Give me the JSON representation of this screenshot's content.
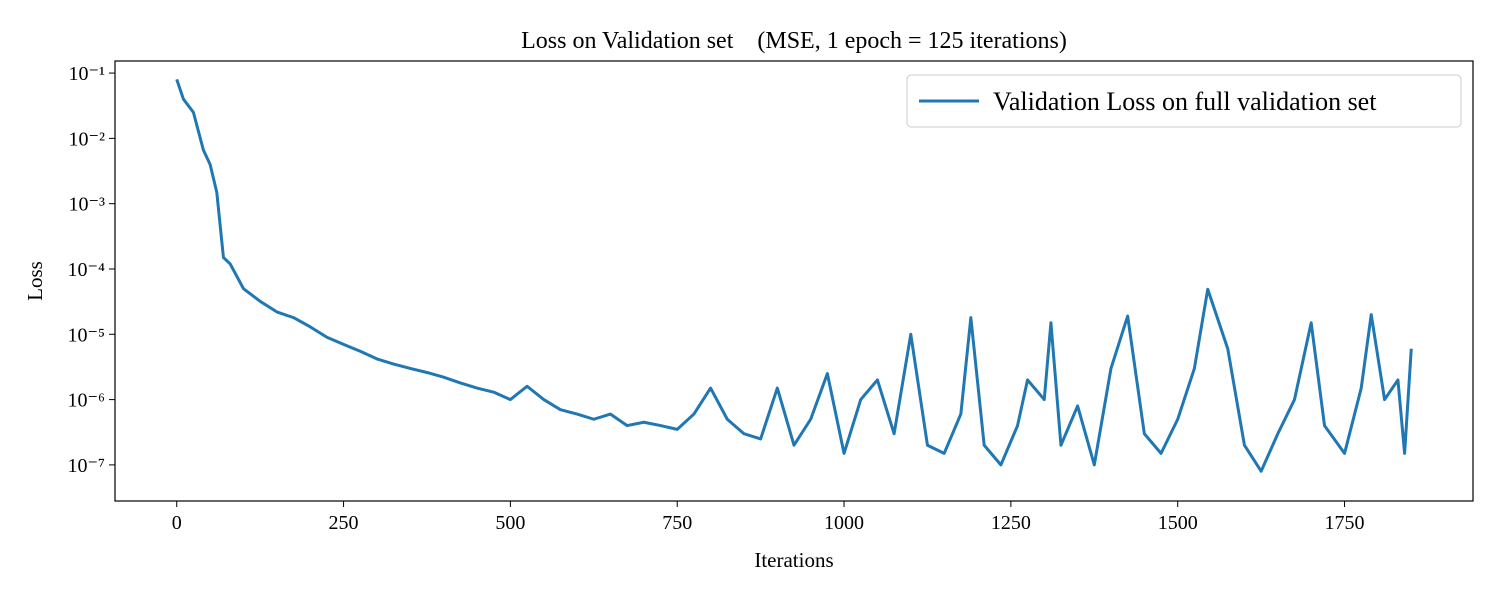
{
  "chart_data": {
    "type": "line",
    "title": "Loss on Validation set    (MSE, 1 epoch = 125 iterations)",
    "x_label": "Iterations",
    "y_label": "Loss",
    "y_scale": "log",
    "legend_position": "upper right",
    "xlim": [
      -92.5,
      1942.5
    ],
    "ylim": [
      2.8e-08,
      0.153
    ],
    "xticks": [
      0,
      250,
      500,
      750,
      1000,
      1250,
      1500,
      1750
    ],
    "yticks": [
      {
        "value": 1e-07,
        "label": "10⁻⁷"
      },
      {
        "value": 1e-06,
        "label": "10⁻⁶"
      },
      {
        "value": 1e-05,
        "label": "10⁻⁵"
      },
      {
        "value": 0.0001,
        "label": "10⁻⁴"
      },
      {
        "value": 0.001,
        "label": "10⁻³"
      },
      {
        "value": 0.01,
        "label": "10⁻²"
      },
      {
        "value": 0.1,
        "label": "10⁻¹"
      }
    ],
    "x": [
      0,
      10,
      25,
      40,
      50,
      60,
      70,
      80,
      100,
      125,
      150,
      175,
      200,
      225,
      250,
      275,
      300,
      325,
      350,
      375,
      400,
      425,
      450,
      475,
      500,
      525,
      550,
      575,
      600,
      625,
      650,
      675,
      700,
      725,
      750,
      775,
      800,
      825,
      850,
      875,
      900,
      925,
      950,
      975,
      1000,
      1025,
      1050,
      1075,
      1100,
      1125,
      1150,
      1175,
      1190,
      1210,
      1235,
      1260,
      1275,
      1300,
      1310,
      1325,
      1350,
      1375,
      1400,
      1425,
      1450,
      1475,
      1500,
      1525,
      1545,
      1575,
      1600,
      1625,
      1650,
      1675,
      1700,
      1720,
      1750,
      1775,
      1790,
      1810,
      1830,
      1840,
      1850
    ],
    "series": [
      {
        "name": "Validation Loss on full validation set",
        "color": "#1f77b4",
        "values": [
          0.08,
          0.04,
          0.025,
          0.0066,
          0.004,
          0.0015,
          0.00015,
          0.00012,
          5e-05,
          3.2e-05,
          2.2e-05,
          1.8e-05,
          1.3e-05,
          9e-06,
          7e-06,
          5.5e-06,
          4.2e-06,
          3.5e-06,
          3e-06,
          2.6e-06,
          2.2e-06,
          1.8e-06,
          1.5e-06,
          1.3e-06,
          1e-06,
          1.6e-06,
          1e-06,
          7e-07,
          6e-07,
          5e-07,
          6e-07,
          4e-07,
          4.5e-07,
          4e-07,
          3.5e-07,
          6e-07,
          1.5e-06,
          5e-07,
          3e-07,
          2.5e-07,
          1.5e-06,
          2e-07,
          5e-07,
          2.5e-06,
          1.5e-07,
          1e-06,
          2e-06,
          3e-07,
          1e-05,
          2e-07,
          1.5e-07,
          6e-07,
          1.8e-05,
          2e-07,
          1e-07,
          4e-07,
          2e-06,
          1e-06,
          1.5e-05,
          2e-07,
          8e-07,
          1e-07,
          3e-06,
          1.9e-05,
          3e-07,
          1.5e-07,
          5e-07,
          3e-06,
          4.9e-05,
          6e-06,
          2e-07,
          8e-08,
          3e-07,
          1e-06,
          1.5e-05,
          4e-07,
          1.5e-07,
          1.5e-06,
          2e-05,
          1e-06,
          2e-06,
          1.5e-07,
          6e-06
        ]
      }
    ]
  }
}
